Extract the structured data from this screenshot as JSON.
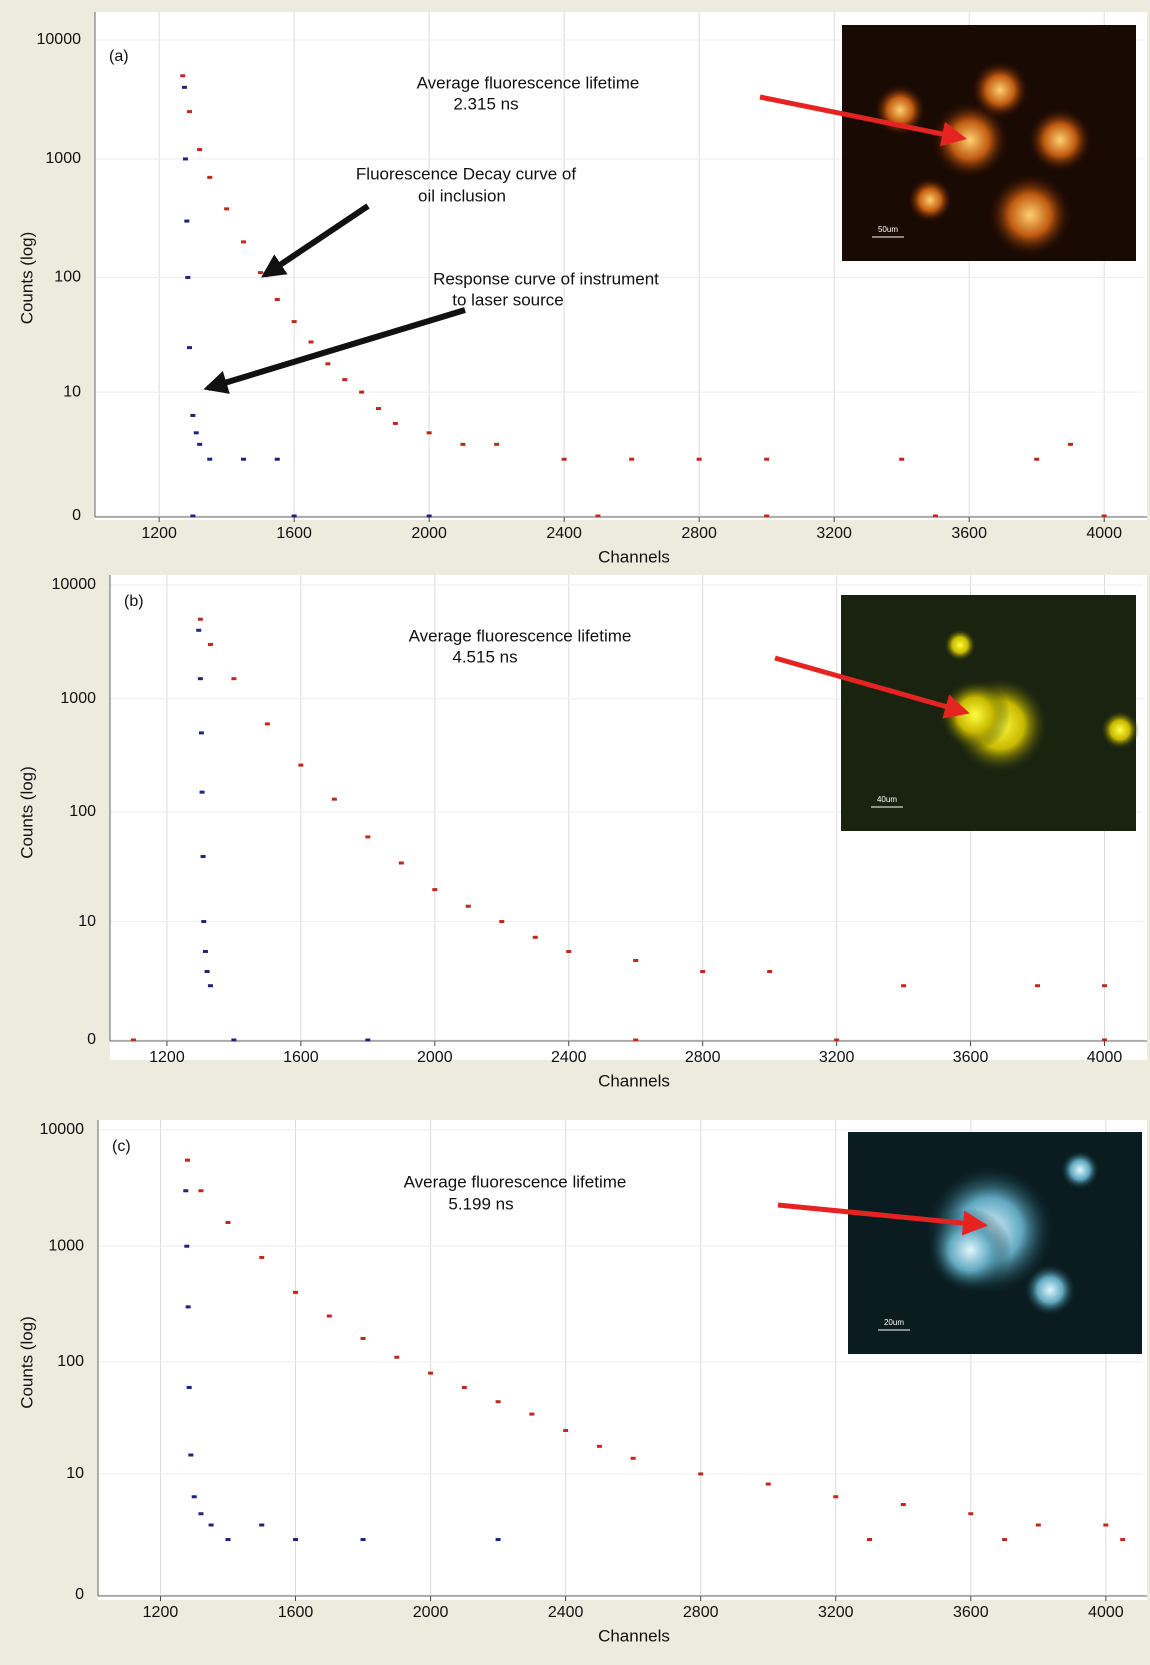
{
  "chart_data": [
    {
      "type": "scatter",
      "panel_label": "(a)",
      "xlabel": "Channels",
      "ylabel": "Counts (log)",
      "xlim": [
        1010,
        4115
      ],
      "xticks": [
        1200,
        1600,
        2000,
        2400,
        2800,
        3200,
        3600,
        4000
      ],
      "ylim": [
        0,
        10000
      ],
      "yticks": [
        0,
        10,
        100,
        1000,
        10000
      ],
      "yscale": "symlog",
      "grid": true,
      "annotations": [
        "Average fluorescence lifetime",
        "2.315 ns",
        "Fluorescence  Decay  curve  of",
        "oil  inclusion",
        "Response curve of instrument",
        "to laser source"
      ],
      "inset_scale_label": "50um",
      "series": [
        {
          "color": "#c0281e",
          "x": [
            1270,
            1290,
            1320,
            1350,
            1400,
            1450,
            1500,
            1550,
            1600,
            1650,
            1700,
            1750,
            1800,
            1850,
            1900,
            2000,
            2100,
            2200,
            2400,
            2600,
            2800,
            3000,
            3400,
            3800,
            3900,
            2500,
            3000,
            3500,
            4000
          ],
          "values": [
            5000,
            2500,
            1200,
            700,
            380,
            200,
            110,
            65,
            42,
            28,
            18,
            13,
            10,
            7,
            5,
            4,
            3,
            3,
            2,
            2,
            2,
            2,
            2,
            2,
            3,
            0,
            0,
            0,
            0
          ]
        },
        {
          "color": "#1f237a",
          "x": [
            1275,
            1278,
            1282,
            1285,
            1290,
            1300,
            1310,
            1320,
            1350,
            1450,
            1550,
            1300,
            1600,
            2000
          ],
          "values": [
            4000,
            1000,
            300,
            100,
            25,
            6,
            4,
            3,
            2,
            2,
            2,
            0,
            0,
            0
          ]
        }
      ]
    },
    {
      "type": "scatter",
      "panel_label": "(b)",
      "xlabel": "Channels",
      "ylabel": "Counts (log)",
      "xlim": [
        1030,
        4115
      ],
      "xticks": [
        1200,
        1600,
        2000,
        2400,
        2800,
        3200,
        3600,
        4000
      ],
      "ylim": [
        0,
        10000
      ],
      "yticks": [
        0,
        10,
        100,
        1000,
        10000
      ],
      "yscale": "symlog",
      "grid": true,
      "annotations": [
        "Average fluorescence lifetime",
        "4.515 ns"
      ],
      "inset_scale_label": "40um",
      "series": [
        {
          "color": "#c0281e",
          "x": [
            1300,
            1330,
            1400,
            1500,
            1600,
            1700,
            1800,
            1900,
            2000,
            2100,
            2200,
            2300,
            2400,
            2600,
            2800,
            3000,
            3400,
            3800,
            4000,
            1100,
            2600,
            3200,
            4000
          ],
          "values": [
            5000,
            3000,
            1500,
            600,
            260,
            130,
            60,
            35,
            20,
            14,
            10,
            7,
            5,
            4,
            3,
            3,
            2,
            2,
            2,
            0,
            0,
            0,
            0
          ]
        },
        {
          "color": "#1f237a",
          "x": [
            1295,
            1300,
            1303,
            1305,
            1308,
            1310,
            1315,
            1320,
            1330,
            1400,
            1800
          ],
          "values": [
            4000,
            1500,
            500,
            150,
            40,
            10,
            5,
            3,
            2,
            0,
            0
          ]
        }
      ]
    },
    {
      "type": "scatter",
      "panel_label": "(c)",
      "xlabel": "Channels",
      "ylabel": "Counts (log)",
      "xlim": [
        1015,
        4110
      ],
      "xticks": [
        1200,
        1600,
        2000,
        2400,
        2800,
        3200,
        3600,
        4000
      ],
      "ylim": [
        0,
        10000
      ],
      "yticks": [
        0,
        10,
        100,
        1000,
        10000
      ],
      "yscale": "symlog",
      "grid": true,
      "annotations": [
        "Average fluorescence lifetime",
        "5.199 ns"
      ],
      "inset_scale_label": "20um",
      "series": [
        {
          "color": "#c0281e",
          "x": [
            1280,
            1320,
            1400,
            1500,
            1600,
            1700,
            1800,
            1900,
            2000,
            2100,
            2200,
            2300,
            2400,
            2500,
            2600,
            2800,
            3000,
            3200,
            3400,
            3600,
            3800,
            4000,
            3300,
            3700,
            4050
          ],
          "values": [
            5500,
            3000,
            1600,
            800,
            400,
            250,
            160,
            110,
            80,
            60,
            45,
            35,
            25,
            18,
            14,
            10,
            8,
            6,
            5,
            4,
            3,
            3,
            2,
            2,
            2
          ]
        },
        {
          "color": "#1f237a",
          "x": [
            1275,
            1278,
            1282,
            1285,
            1290,
            1300,
            1320,
            1350,
            1400,
            1500,
            1600,
            1800,
            2200
          ],
          "values": [
            3000,
            1000,
            300,
            60,
            15,
            6,
            4,
            3,
            2,
            3,
            2,
            2,
            2
          ]
        }
      ]
    }
  ]
}
